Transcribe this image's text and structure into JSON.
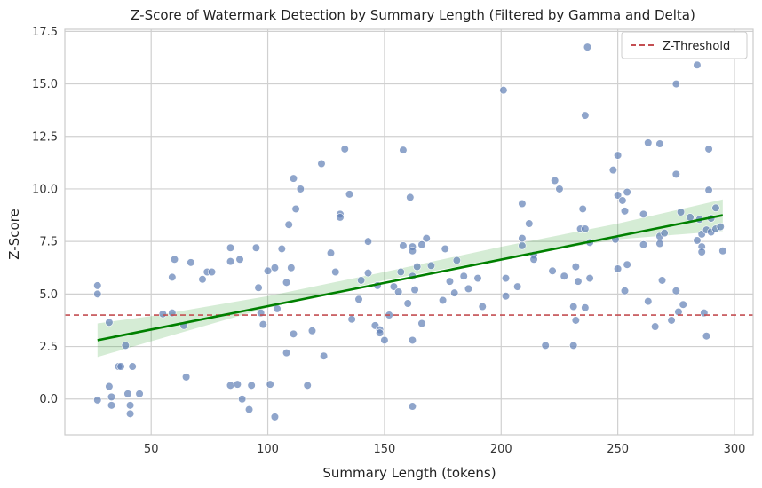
{
  "chart_data": {
    "type": "scatter",
    "title": "Z-Score of Watermark Detection by Summary Length (Filtered by Gamma and Delta)",
    "xlabel": "Summary Length (tokens)",
    "ylabel": "Z-Score",
    "xlim": [
      13,
      308
    ],
    "ylim": [
      -1.7,
      17.6
    ],
    "xticks": [
      50,
      100,
      150,
      200,
      250,
      300
    ],
    "yticks": [
      0.0,
      2.5,
      5.0,
      7.5,
      10.0,
      12.5,
      15.0,
      17.5
    ],
    "xtick_labels": [
      "50",
      "100",
      "150",
      "200",
      "250",
      "300"
    ],
    "ytick_labels": [
      "0.0",
      "2.5",
      "5.0",
      "7.5",
      "10.0",
      "12.5",
      "15.0",
      "17.5"
    ],
    "grid": true,
    "legend": {
      "placement": "top-right",
      "entries": [
        "Z-Threshold"
      ]
    },
    "colors": {
      "points": "#5f7fb5",
      "regression_line": "#008000",
      "confidence_band": "#2ca02c",
      "threshold": "#c44e52",
      "grid": "#d0d0d0",
      "spine": "#cccccc"
    },
    "threshold": {
      "name": "Z-Threshold",
      "y": 4.0
    },
    "regression": {
      "x": [
        27,
        295
      ],
      "y": [
        2.8,
        8.75
      ],
      "band_x": [
        27,
        50,
        100,
        150,
        200,
        250,
        295
      ],
      "band_lower": [
        2.0,
        2.75,
        4.35,
        5.65,
        6.7,
        7.6,
        8.0
      ],
      "band_upper": [
        3.6,
        3.95,
        4.9,
        6.05,
        7.25,
        8.35,
        9.5
      ]
    },
    "points": [
      {
        "x": 27,
        "y": 5.4
      },
      {
        "x": 27,
        "y": 5.0
      },
      {
        "x": 27,
        "y": -0.05
      },
      {
        "x": 32,
        "y": 3.65
      },
      {
        "x": 32,
        "y": 0.6
      },
      {
        "x": 33,
        "y": 0.1
      },
      {
        "x": 33,
        "y": -0.3
      },
      {
        "x": 36,
        "y": 1.55
      },
      {
        "x": 37,
        "y": 1.55
      },
      {
        "x": 39,
        "y": 2.55
      },
      {
        "x": 40,
        "y": 0.25
      },
      {
        "x": 41,
        "y": -0.3
      },
      {
        "x": 41,
        "y": -0.7
      },
      {
        "x": 42,
        "y": 1.55
      },
      {
        "x": 45,
        "y": 0.25
      },
      {
        "x": 55,
        "y": 4.05
      },
      {
        "x": 59,
        "y": 4.1
      },
      {
        "x": 59,
        "y": 5.8
      },
      {
        "x": 60,
        "y": 6.65
      },
      {
        "x": 64,
        "y": 3.5
      },
      {
        "x": 65,
        "y": 1.05
      },
      {
        "x": 67,
        "y": 6.5
      },
      {
        "x": 72,
        "y": 5.7
      },
      {
        "x": 74,
        "y": 6.05
      },
      {
        "x": 76,
        "y": 6.05
      },
      {
        "x": 84,
        "y": 6.55
      },
      {
        "x": 84,
        "y": 7.2
      },
      {
        "x": 84,
        "y": 0.65
      },
      {
        "x": 87,
        "y": 0.7
      },
      {
        "x": 88,
        "y": 6.65
      },
      {
        "x": 89,
        "y": 0.0
      },
      {
        "x": 92,
        "y": -0.5
      },
      {
        "x": 93,
        "y": 0.65
      },
      {
        "x": 95,
        "y": 7.2
      },
      {
        "x": 96,
        "y": 5.3
      },
      {
        "x": 97,
        "y": 4.1
      },
      {
        "x": 98,
        "y": 3.55
      },
      {
        "x": 100,
        "y": 6.1
      },
      {
        "x": 101,
        "y": 0.7
      },
      {
        "x": 103,
        "y": 6.25
      },
      {
        "x": 103,
        "y": -0.85
      },
      {
        "x": 104,
        "y": 4.3
      },
      {
        "x": 106,
        "y": 7.15
      },
      {
        "x": 108,
        "y": 5.55
      },
      {
        "x": 108,
        "y": 2.2
      },
      {
        "x": 109,
        "y": 8.3
      },
      {
        "x": 110,
        "y": 6.25
      },
      {
        "x": 111,
        "y": 3.1
      },
      {
        "x": 111,
        "y": 10.5
      },
      {
        "x": 112,
        "y": 9.05
      },
      {
        "x": 114,
        "y": 10.0
      },
      {
        "x": 117,
        "y": 0.65
      },
      {
        "x": 119,
        "y": 3.25
      },
      {
        "x": 123,
        "y": 11.2
      },
      {
        "x": 124,
        "y": 2.05
      },
      {
        "x": 127,
        "y": 6.95
      },
      {
        "x": 129,
        "y": 6.05
      },
      {
        "x": 131,
        "y": 8.8
      },
      {
        "x": 131,
        "y": 8.65
      },
      {
        "x": 133,
        "y": 11.9
      },
      {
        "x": 135,
        "y": 9.75
      },
      {
        "x": 136,
        "y": 3.8
      },
      {
        "x": 139,
        "y": 4.75
      },
      {
        "x": 140,
        "y": 5.65
      },
      {
        "x": 143,
        "y": 7.5
      },
      {
        "x": 143,
        "y": 6.0
      },
      {
        "x": 146,
        "y": 3.5
      },
      {
        "x": 147,
        "y": 5.4
      },
      {
        "x": 148,
        "y": 3.3
      },
      {
        "x": 148,
        "y": 3.15
      },
      {
        "x": 150,
        "y": 2.8
      },
      {
        "x": 152,
        "y": 4.0
      },
      {
        "x": 154,
        "y": 5.35
      },
      {
        "x": 156,
        "y": 5.1
      },
      {
        "x": 157,
        "y": 6.05
      },
      {
        "x": 158,
        "y": 7.3
      },
      {
        "x": 158,
        "y": 11.85
      },
      {
        "x": 160,
        "y": 4.55
      },
      {
        "x": 161,
        "y": 9.6
      },
      {
        "x": 162,
        "y": 7.25
      },
      {
        "x": 162,
        "y": 7.05
      },
      {
        "x": 162,
        "y": 5.85
      },
      {
        "x": 162,
        "y": 2.8
      },
      {
        "x": 162,
        "y": -0.35
      },
      {
        "x": 163,
        "y": 5.2
      },
      {
        "x": 164,
        "y": 6.3
      },
      {
        "x": 166,
        "y": 3.6
      },
      {
        "x": 166,
        "y": 7.35
      },
      {
        "x": 168,
        "y": 7.65
      },
      {
        "x": 170,
        "y": 6.35
      },
      {
        "x": 175,
        "y": 4.7
      },
      {
        "x": 176,
        "y": 7.15
      },
      {
        "x": 178,
        "y": 5.6
      },
      {
        "x": 180,
        "y": 5.05
      },
      {
        "x": 181,
        "y": 6.6
      },
      {
        "x": 184,
        "y": 5.85
      },
      {
        "x": 186,
        "y": 5.25
      },
      {
        "x": 190,
        "y": 5.75
      },
      {
        "x": 192,
        "y": 4.4
      },
      {
        "x": 201,
        "y": 14.7
      },
      {
        "x": 202,
        "y": 5.75
      },
      {
        "x": 202,
        "y": 4.9
      },
      {
        "x": 207,
        "y": 5.35
      },
      {
        "x": 209,
        "y": 7.3
      },
      {
        "x": 209,
        "y": 7.65
      },
      {
        "x": 209,
        "y": 9.3
      },
      {
        "x": 212,
        "y": 8.35
      },
      {
        "x": 214,
        "y": 6.85
      },
      {
        "x": 214,
        "y": 6.65
      },
      {
        "x": 219,
        "y": 2.55
      },
      {
        "x": 222,
        "y": 6.1
      },
      {
        "x": 223,
        "y": 10.4
      },
      {
        "x": 225,
        "y": 10.0
      },
      {
        "x": 227,
        "y": 5.85
      },
      {
        "x": 231,
        "y": 2.55
      },
      {
        "x": 231,
        "y": 4.4
      },
      {
        "x": 232,
        "y": 3.75
      },
      {
        "x": 232,
        "y": 6.3
      },
      {
        "x": 233,
        "y": 5.6
      },
      {
        "x": 234,
        "y": 8.1
      },
      {
        "x": 235,
        "y": 9.05
      },
      {
        "x": 236,
        "y": 8.1
      },
      {
        "x": 236,
        "y": 13.5
      },
      {
        "x": 236,
        "y": 4.35
      },
      {
        "x": 237,
        "y": 16.75
      },
      {
        "x": 238,
        "y": 7.45
      },
      {
        "x": 238,
        "y": 5.75
      },
      {
        "x": 248,
        "y": 10.9
      },
      {
        "x": 249,
        "y": 7.6
      },
      {
        "x": 250,
        "y": 6.2
      },
      {
        "x": 250,
        "y": 9.7
      },
      {
        "x": 250,
        "y": 11.6
      },
      {
        "x": 252,
        "y": 9.45
      },
      {
        "x": 253,
        "y": 8.95
      },
      {
        "x": 253,
        "y": 5.15
      },
      {
        "x": 254,
        "y": 6.4
      },
      {
        "x": 254,
        "y": 9.85
      },
      {
        "x": 261,
        "y": 8.8
      },
      {
        "x": 261,
        "y": 7.35
      },
      {
        "x": 263,
        "y": 4.65
      },
      {
        "x": 263,
        "y": 12.2
      },
      {
        "x": 266,
        "y": 3.45
      },
      {
        "x": 268,
        "y": 12.15
      },
      {
        "x": 268,
        "y": 7.75
      },
      {
        "x": 268,
        "y": 7.4
      },
      {
        "x": 269,
        "y": 5.65
      },
      {
        "x": 270,
        "y": 7.9
      },
      {
        "x": 273,
        "y": 3.75
      },
      {
        "x": 275,
        "y": 15.0
      },
      {
        "x": 275,
        "y": 10.7
      },
      {
        "x": 275,
        "y": 5.15
      },
      {
        "x": 276,
        "y": 4.15
      },
      {
        "x": 277,
        "y": 8.9
      },
      {
        "x": 278,
        "y": 4.5
      },
      {
        "x": 281,
        "y": 8.65
      },
      {
        "x": 284,
        "y": 15.9
      },
      {
        "x": 284,
        "y": 7.55
      },
      {
        "x": 285,
        "y": 8.55
      },
      {
        "x": 286,
        "y": 7.25
      },
      {
        "x": 286,
        "y": 7.0
      },
      {
        "x": 286,
        "y": 7.85
      },
      {
        "x": 287,
        "y": 4.1
      },
      {
        "x": 288,
        "y": 8.05
      },
      {
        "x": 288,
        "y": 3.0
      },
      {
        "x": 289,
        "y": 11.9
      },
      {
        "x": 289,
        "y": 9.95
      },
      {
        "x": 290,
        "y": 8.6
      },
      {
        "x": 290,
        "y": 7.95
      },
      {
        "x": 292,
        "y": 9.1
      },
      {
        "x": 292,
        "y": 8.1
      },
      {
        "x": 294,
        "y": 8.2
      },
      {
        "x": 295,
        "y": 7.05
      }
    ]
  }
}
